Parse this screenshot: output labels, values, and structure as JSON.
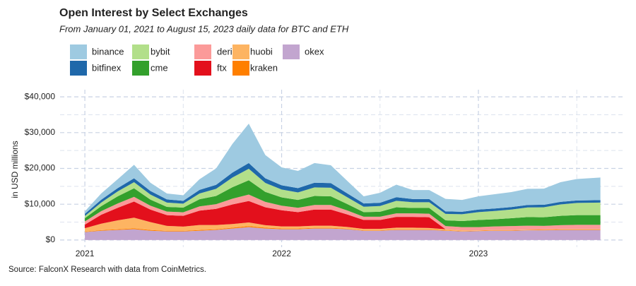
{
  "chart_data": {
    "type": "stacked_area",
    "title": "Open Interest by Select Exchanges",
    "subtitle": "From January 01, 2021 to August 15, 2023 daily data for BTC and ETH",
    "ylabel": "in USD millions",
    "source": "Source: FalconX Research with data from CoinMetrics.",
    "grid": true,
    "legend": "top",
    "xlim": [
      2020.874,
      2023.747
    ],
    "xticks": [
      2021,
      2022,
      2023
    ],
    "ylim": [
      -2000,
      42000
    ],
    "yticks": [
      {
        "value": 0,
        "label": "$0"
      },
      {
        "value": 10000,
        "label": "$10,000"
      },
      {
        "value": 20000,
        "label": "$20,000"
      },
      {
        "value": 30000,
        "label": "$30,000"
      },
      {
        "value": 40000,
        "label": "$40,000"
      }
    ],
    "x": [
      2021,
      2021.083,
      2021.167,
      2021.25,
      2021.333,
      2021.417,
      2021.5,
      2021.583,
      2021.667,
      2021.75,
      2021.833,
      2021.917,
      2022,
      2022.083,
      2022.167,
      2022.25,
      2022.333,
      2022.417,
      2022.5,
      2022.583,
      2022.667,
      2022.75,
      2022.833,
      2022.917,
      2023,
      2023.083,
      2023.167,
      2023.25,
      2023.333,
      2023.417,
      2023.5,
      2023.62
    ],
    "series": [
      {
        "name": "binance",
        "color": "#9ecae1",
        "values": [
          700,
          1750,
          2500,
          3750,
          2300,
          1650,
          1550,
          3000,
          4600,
          8000,
          11000,
          6500,
          5000,
          4800,
          5500,
          5000,
          3500,
          2000,
          2800,
          3500,
          2500,
          2500,
          3500,
          3300,
          3700,
          4000,
          4200,
          4500,
          4500,
          5500,
          6000,
          6300
        ]
      },
      {
        "name": "bitfinex",
        "color": "#1f68aa",
        "values": [
          600,
          800,
          900,
          1100,
          1000,
          900,
          800,
          1000,
          1100,
          1400,
          1600,
          1300,
          1200,
          1200,
          1300,
          1300,
          1100,
          900,
          900,
          1000,
          900,
          900,
          700,
          700,
          700,
          700,
          700,
          700,
          700,
          700,
          700,
          700
        ]
      },
      {
        "name": "bybit",
        "color": "#b2df8a",
        "values": [
          600,
          1000,
          1400,
          1700,
          1400,
          1200,
          1100,
          1600,
          2000,
          2700,
          3200,
          2500,
          2200,
          2100,
          2400,
          2400,
          1900,
          1500,
          1600,
          1800,
          1600,
          1600,
          1800,
          1900,
          2200,
          2300,
          2400,
          2700,
          2800,
          3200,
          3400,
          3500
        ]
      },
      {
        "name": "cme",
        "color": "#33a02c",
        "values": [
          900,
          1400,
          2000,
          2400,
          1700,
          1300,
          1300,
          2000,
          2300,
          3200,
          4000,
          2800,
          2300,
          2200,
          2500,
          2400,
          1800,
          1300,
          1400,
          1700,
          1500,
          1600,
          1600,
          1700,
          2000,
          2000,
          2200,
          2400,
          2400,
          2600,
          2700,
          2700
        ]
      },
      {
        "name": "deribit",
        "color": "#fb9a99",
        "values": [
          900,
          1000,
          1200,
          1300,
          1100,
          1000,
          1000,
          1200,
          1300,
          1600,
          1800,
          1500,
          1300,
          1200,
          1300,
          1300,
          1100,
          900,
          900,
          1000,
          1000,
          1000,
          900,
          900,
          900,
          1000,
          1100,
          1100,
          1000,
          1100,
          1200,
          1200
        ]
      },
      {
        "name": "ftx",
        "color": "#e3101c",
        "values": [
          1000,
          2500,
          3500,
          4500,
          3500,
          3000,
          3000,
          4000,
          4500,
          5500,
          6000,
          5000,
          4500,
          4000,
          4500,
          4500,
          3500,
          2500,
          2500,
          3000,
          3000,
          3000,
          0,
          0,
          0,
          0,
          0,
          0,
          0,
          0,
          0,
          0
        ]
      },
      {
        "name": "huobi",
        "color": "#fdb462",
        "values": [
          1000,
          1800,
          2500,
          3000,
          2200,
          1400,
          1200,
          1400,
          1200,
          1000,
          1000,
          700,
          600,
          600,
          600,
          600,
          500,
          400,
          400,
          500,
          500,
          400,
          300,
          200,
          100,
          100,
          100,
          100,
          100,
          100,
          100,
          100
        ]
      },
      {
        "name": "kraken",
        "color": "#ff7f00",
        "values": [
          100,
          150,
          200,
          250,
          200,
          150,
          150,
          200,
          200,
          250,
          300,
          250,
          200,
          200,
          200,
          200,
          150,
          100,
          100,
          150,
          150,
          150,
          100,
          100,
          100,
          100,
          100,
          100,
          150,
          150,
          150,
          150
        ]
      },
      {
        "name": "okex",
        "color": "#c2a5cf",
        "values": [
          2200,
          2600,
          2800,
          3000,
          2600,
          2400,
          2400,
          2600,
          2800,
          3200,
          3600,
          3200,
          3000,
          3000,
          3200,
          3200,
          3000,
          2600,
          2600,
          2800,
          2800,
          2800,
          2600,
          2400,
          2500,
          2600,
          2600,
          2700,
          2700,
          2800,
          2800,
          2800
        ]
      }
    ]
  }
}
